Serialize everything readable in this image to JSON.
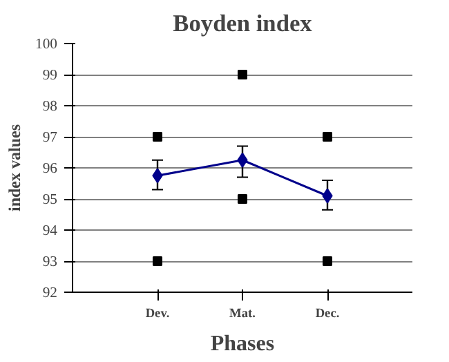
{
  "chart_data": {
    "type": "line",
    "title": "Boyden index",
    "xlabel": "Phases",
    "ylabel": "index values",
    "categories": [
      "Dev.",
      "Mat.",
      "Dec."
    ],
    "series": [
      {
        "color": "#00008b",
        "marker": "diamond",
        "values": [
          95.75,
          96.25,
          95.1
        ],
        "errors": [
          [
            95.3,
            96.25
          ],
          [
            95.7,
            96.7
          ],
          [
            94.65,
            95.6
          ]
        ]
      },
      {
        "type": "scatter",
        "color": "#000000",
        "marker": "square",
        "values": [
          97,
          99,
          97
        ]
      },
      {
        "type": "scatter",
        "color": "#000000",
        "marker": "square",
        "values": [
          93,
          95,
          93
        ]
      }
    ],
    "ylim": [
      92,
      100
    ],
    "yticks": [
      92,
      93,
      94,
      95,
      96,
      97,
      98,
      99,
      100
    ],
    "grid": "y"
  }
}
